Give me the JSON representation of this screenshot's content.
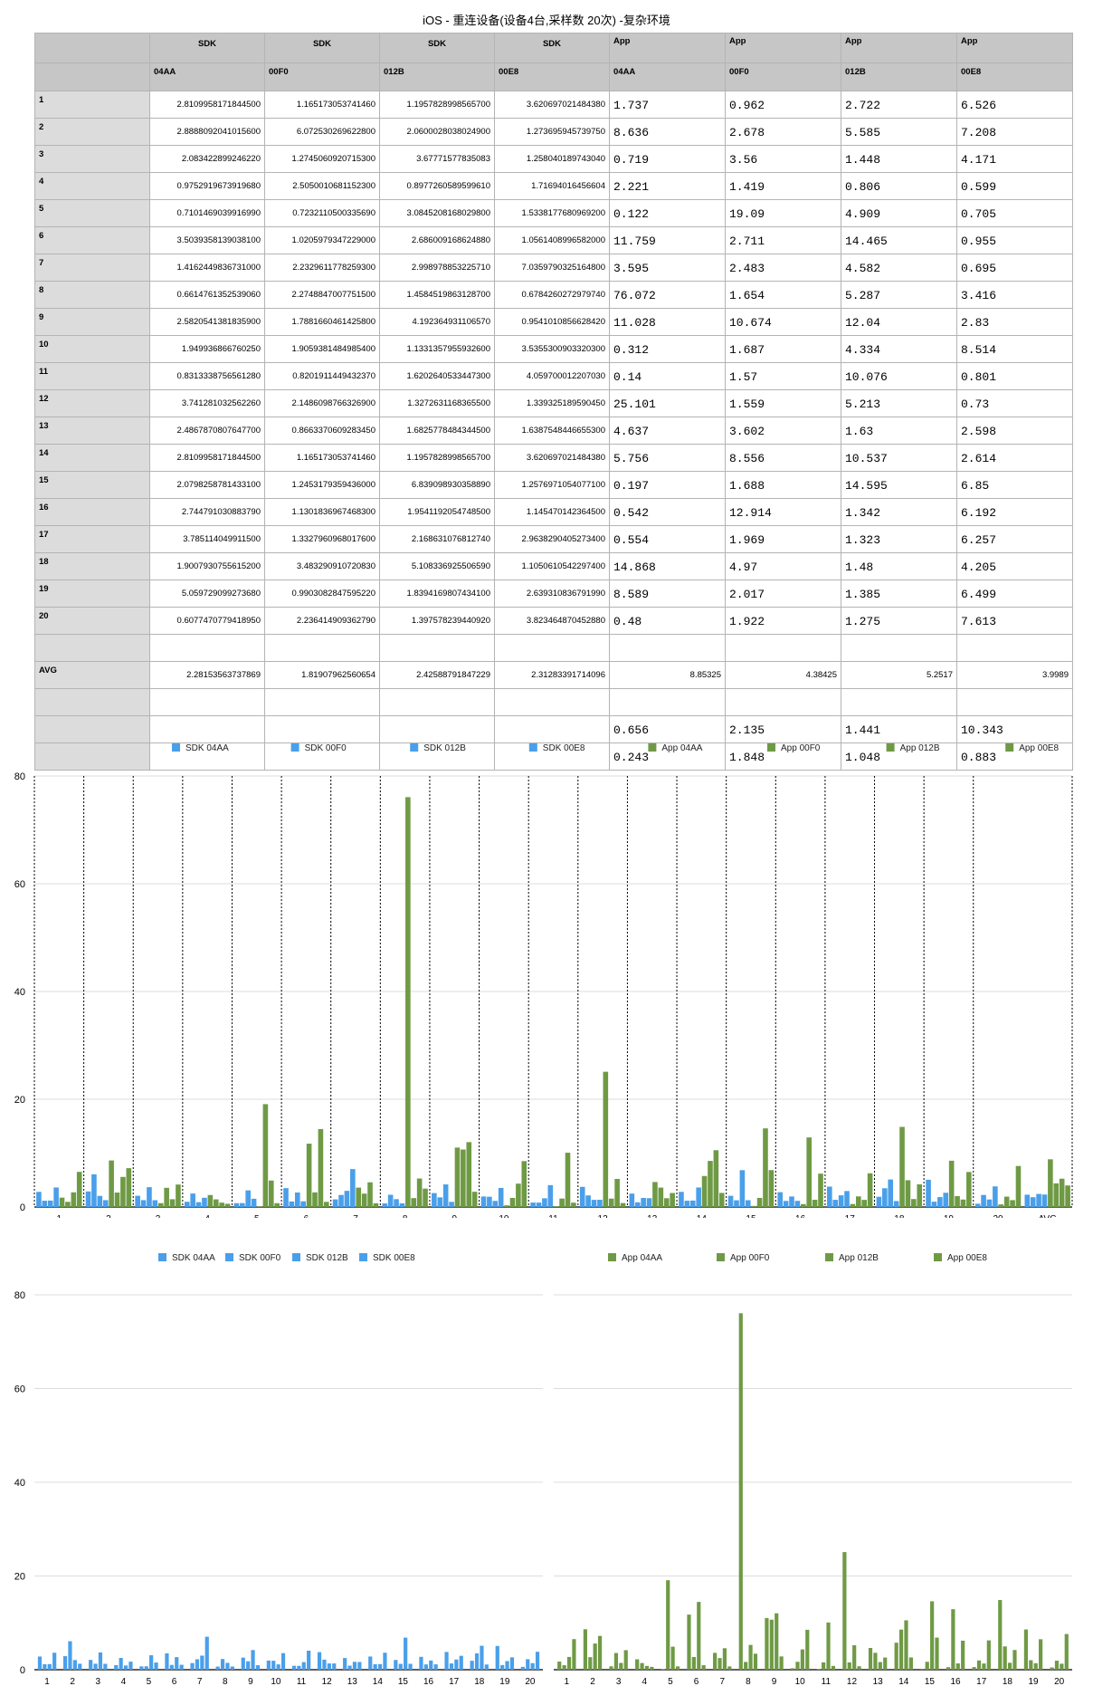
{
  "title": "iOS - 重连设备(设备4台,采样数 20次) -复杂环境",
  "table": {
    "group_headers": [
      "SDK",
      "SDK",
      "SDK",
      "SDK",
      "App",
      "App",
      "App",
      "App"
    ],
    "device_headers": [
      "04AA",
      "00F0",
      "012B",
      "00E8",
      "04AA",
      "00F0",
      "012B",
      "00E8"
    ],
    "rows": [
      {
        "label": "1",
        "sdk": [
          "2.8109958171844500",
          "1.165173053741460",
          "1.1957828998565700",
          "3.620697021484380"
        ],
        "app": [
          "1.737",
          "0.962",
          "2.722",
          "6.526"
        ]
      },
      {
        "label": "2",
        "sdk": [
          "2.8888092041015600",
          "6.072530269622800",
          "2.0600028038024900",
          "1.273695945739750"
        ],
        "app": [
          "8.636",
          "2.678",
          "5.585",
          "7.208"
        ]
      },
      {
        "label": "3",
        "sdk": [
          "2.083422899246220",
          "1.2745060920715300",
          "3.67771577835083",
          "1.258040189743040"
        ],
        "app": [
          "0.719",
          "3.56",
          "1.448",
          "4.171"
        ]
      },
      {
        "label": "4",
        "sdk": [
          "0.9752919673919680",
          "2.5050010681152300",
          "0.8977260589599610",
          "1.71694016456604"
        ],
        "app": [
          "2.221",
          "1.419",
          "0.806",
          "0.599"
        ]
      },
      {
        "label": "5",
        "sdk": [
          "0.7101469039916990",
          "0.7232110500335690",
          "3.0845208168029800",
          "1.5338177680969200"
        ],
        "app": [
          "0.122",
          "19.09",
          "4.909",
          "0.705"
        ]
      },
      {
        "label": "6",
        "sdk": [
          "3.5039358139038100",
          "1.0205979347229000",
          "2.686009168624880",
          "1.0561408996582000"
        ],
        "app": [
          "11.759",
          "2.711",
          "14.465",
          "0.955"
        ]
      },
      {
        "label": "7",
        "sdk": [
          "1.4162449836731000",
          "2.2329611778259300",
          "2.998978853225710",
          "7.0359790325164800"
        ],
        "app": [
          "3.595",
          "2.483",
          "4.582",
          "0.695"
        ]
      },
      {
        "label": "8",
        "sdk": [
          "0.6614761352539060",
          "2.2748847007751500",
          "1.4584519863128700",
          "0.6784260272979740"
        ],
        "app": [
          "76.072",
          "1.654",
          "5.287",
          "3.416"
        ]
      },
      {
        "label": "9",
        "sdk": [
          "2.5820541381835900",
          "1.7881660461425800",
          "4.192364931106570",
          "0.9541010856628420"
        ],
        "app": [
          "11.028",
          "10.674",
          "12.04",
          "2.83"
        ]
      },
      {
        "label": "10",
        "sdk": [
          "1.949936866760250",
          "1.9059381484985400",
          "1.1331357955932600",
          "3.5355300903320300"
        ],
        "app": [
          "0.312",
          "1.687",
          "4.334",
          "8.514"
        ]
      },
      {
        "label": "11",
        "sdk": [
          "0.8313338756561280",
          "0.8201911449432370",
          "1.6202640533447300",
          "4.059700012207030"
        ],
        "app": [
          "0.14",
          "1.57",
          "10.076",
          "0.801"
        ]
      },
      {
        "label": "12",
        "sdk": [
          "3.741281032562260",
          "2.1486098766326900",
          "1.3272631168365500",
          "1.339325189590450"
        ],
        "app": [
          "25.101",
          "1.559",
          "5.213",
          "0.73"
        ]
      },
      {
        "label": "13",
        "sdk": [
          "2.4867870807647700",
          "0.8663370609283450",
          "1.6825778484344500",
          "1.6387548446655300"
        ],
        "app": [
          "4.637",
          "3.602",
          "1.63",
          "2.598"
        ]
      },
      {
        "label": "14",
        "sdk": [
          "2.8109958171844500",
          "1.165173053741460",
          "1.1957828998565700",
          "3.620697021484380"
        ],
        "app": [
          "5.756",
          "8.556",
          "10.537",
          "2.614"
        ]
      },
      {
        "label": "15",
        "sdk": [
          "2.0798258781433100",
          "1.2453179359436000",
          "6.839098930358890",
          "1.2576971054077100"
        ],
        "app": [
          "0.197",
          "1.688",
          "14.595",
          "6.85"
        ]
      },
      {
        "label": "16",
        "sdk": [
          "2.744791030883790",
          "1.1301836967468300",
          "1.9541192054748500",
          "1.145470142364500"
        ],
        "app": [
          "0.542",
          "12.914",
          "1.342",
          "6.192"
        ]
      },
      {
        "label": "17",
        "sdk": [
          "3.785114049911500",
          "1.3327960968017600",
          "2.168631076812740",
          "2.9638290405273400"
        ],
        "app": [
          "0.554",
          "1.969",
          "1.323",
          "6.257"
        ]
      },
      {
        "label": "18",
        "sdk": [
          "1.9007930755615200",
          "3.483290910720830",
          "5.108336925506590",
          "1.1050610542297400"
        ],
        "app": [
          "14.868",
          "4.97",
          "1.48",
          "4.205"
        ]
      },
      {
        "label": "19",
        "sdk": [
          "5.059729099273680",
          "0.9903082847595220",
          "1.8394169807434100",
          "2.639310836791990"
        ],
        "app": [
          "8.589",
          "2.017",
          "1.385",
          "6.499"
        ]
      },
      {
        "label": "20",
        "sdk": [
          "0.6077470779418950",
          "2.236414909362790",
          "1.397578239440920",
          "3.823464870452880"
        ],
        "app": [
          "0.48",
          "1.922",
          "1.275",
          "7.613"
        ]
      }
    ],
    "avg_label": "AVG",
    "avg_sdk": [
      "2.28153563737869",
      "1.81907962560654",
      "2.42588791847229",
      "2.31283391714096"
    ],
    "avg_app": [
      "8.85325",
      "4.38425",
      "5.2517",
      "3.9989"
    ],
    "extra_rows": [
      [
        "0.656",
        "2.135",
        "1.441",
        "10.343"
      ],
      [
        "0.243",
        "1.848",
        "1.048",
        "0.883"
      ]
    ]
  },
  "colors": {
    "sdk": "#4a9fea",
    "app": "#6f9a45",
    "grid": "#dcdcdc",
    "axis": "#000000",
    "divider": "#000000"
  },
  "chart_data": [
    {
      "type": "bar",
      "categories": [
        "1",
        "2",
        "3",
        "4",
        "5",
        "6",
        "7",
        "8",
        "9",
        "10",
        "11",
        "12",
        "13",
        "14",
        "15",
        "16",
        "17",
        "18",
        "19",
        "20",
        "AVG"
      ],
      "ylim": [
        0,
        80
      ],
      "yticks": [
        0,
        20,
        40,
        60,
        80
      ],
      "grid": true,
      "legend": "top",
      "series": [
        {
          "name": "SDK 04AA",
          "group": "sdk",
          "values": [
            2.81,
            2.889,
            2.083,
            0.975,
            0.71,
            3.504,
            1.416,
            0.661,
            2.582,
            1.95,
            0.831,
            3.741,
            2.487,
            2.811,
            2.08,
            2.745,
            3.785,
            1.901,
            5.06,
            0.608,
            2.282
          ]
        },
        {
          "name": "SDK 00F0",
          "group": "sdk",
          "values": [
            1.165,
            6.073,
            1.275,
            2.505,
            0.723,
            1.021,
            2.233,
            2.275,
            1.788,
            1.906,
            0.82,
            2.149,
            0.866,
            1.165,
            1.245,
            1.13,
            1.333,
            3.483,
            0.99,
            2.236,
            1.819
          ]
        },
        {
          "name": "SDK 012B",
          "group": "sdk",
          "values": [
            1.196,
            2.06,
            3.678,
            0.898,
            3.085,
            2.686,
            2.999,
            1.458,
            4.192,
            1.133,
            1.62,
            1.327,
            1.683,
            1.196,
            6.839,
            1.954,
            2.169,
            5.108,
            1.839,
            1.398,
            2.426
          ]
        },
        {
          "name": "SDK 00E8",
          "group": "sdk",
          "values": [
            3.621,
            1.274,
            1.258,
            1.717,
            1.534,
            1.056,
            7.036,
            0.678,
            0.954,
            3.536,
            4.06,
            1.339,
            1.639,
            3.621,
            1.258,
            1.145,
            2.964,
            1.105,
            2.639,
            3.823,
            2.313
          ]
        },
        {
          "name": "App 04AA",
          "group": "app",
          "values": [
            1.737,
            8.636,
            0.719,
            2.221,
            0.122,
            11.759,
            3.595,
            76.072,
            11.028,
            0.312,
            0.14,
            25.101,
            4.637,
            5.756,
            0.197,
            0.542,
            0.554,
            14.868,
            8.589,
            0.48,
            8.853
          ]
        },
        {
          "name": "App 00F0",
          "group": "app",
          "values": [
            0.962,
            2.678,
            3.56,
            1.419,
            19.09,
            2.711,
            2.483,
            1.654,
            10.674,
            1.687,
            1.57,
            1.559,
            3.602,
            8.556,
            1.688,
            12.914,
            1.969,
            4.97,
            2.017,
            1.922,
            4.384
          ]
        },
        {
          "name": "App 012B",
          "group": "app",
          "values": [
            2.722,
            5.585,
            1.448,
            0.806,
            4.909,
            14.465,
            4.582,
            5.287,
            12.04,
            4.334,
            10.076,
            5.213,
            1.63,
            10.537,
            14.595,
            1.342,
            1.323,
            1.48,
            1.385,
            1.275,
            5.252
          ]
        },
        {
          "name": "App 00E8",
          "group": "app",
          "values": [
            6.526,
            7.208,
            4.171,
            0.599,
            0.705,
            0.955,
            0.695,
            3.416,
            2.83,
            8.514,
            0.801,
            0.73,
            2.598,
            2.614,
            6.85,
            6.192,
            6.257,
            4.205,
            6.499,
            7.613,
            3.999
          ]
        }
      ]
    },
    {
      "type": "bar",
      "categories": [
        "1",
        "2",
        "3",
        "4",
        "5",
        "6",
        "7",
        "8",
        "9",
        "10",
        "11",
        "12",
        "13",
        "14",
        "15",
        "16",
        "17",
        "18",
        "19",
        "20"
      ],
      "ylim": [
        0,
        80
      ],
      "yticks": [
        0,
        20,
        40,
        60,
        80
      ],
      "grid": true,
      "legend": "top",
      "series_ref": "sdk"
    },
    {
      "type": "bar",
      "categories": [
        "1",
        "2",
        "3",
        "4",
        "5",
        "6",
        "7",
        "8",
        "9",
        "10",
        "11",
        "12",
        "13",
        "14",
        "15",
        "16",
        "17",
        "18",
        "19",
        "20"
      ],
      "ylim": [
        0,
        80
      ],
      "yticks": [
        0,
        20,
        40,
        60,
        80
      ],
      "grid": true,
      "legend": "top",
      "series_ref": "app"
    }
  ]
}
